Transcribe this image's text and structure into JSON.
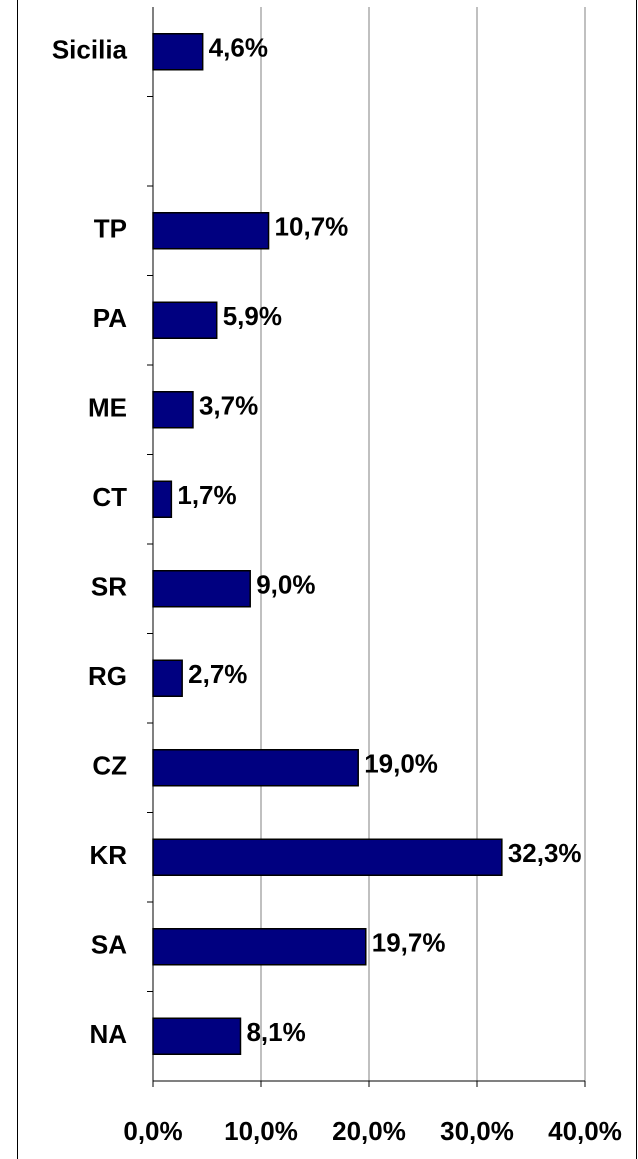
{
  "chart_data": {
    "type": "bar",
    "orientation": "horizontal",
    "categories": [
      "Sicilia",
      null,
      "TP",
      "PA",
      "ME",
      "CT",
      "SR",
      "RG",
      "CZ",
      "KR",
      "SA",
      "NA"
    ],
    "values": [
      4.6,
      null,
      10.7,
      5.9,
      3.7,
      1.7,
      9.0,
      2.7,
      19.0,
      32.3,
      19.7,
      8.1
    ],
    "value_labels": [
      "4,6%",
      null,
      "10,7%",
      "5,9%",
      "3,7%",
      "1,7%",
      "9,0%",
      "2,7%",
      "19,0%",
      "32,3%",
      "19,7%",
      "8,1%"
    ],
    "color": "#000080",
    "xlim": [
      0,
      40
    ],
    "xticks": [
      {
        "value": 0,
        "label": "0,0%"
      },
      {
        "value": 10,
        "label": "10,0%"
      },
      {
        "value": 20,
        "label": "20,0%"
      },
      {
        "value": 30,
        "label": "30,0%"
      },
      {
        "value": 40,
        "label": "40,0%"
      }
    ],
    "grid": true
  }
}
